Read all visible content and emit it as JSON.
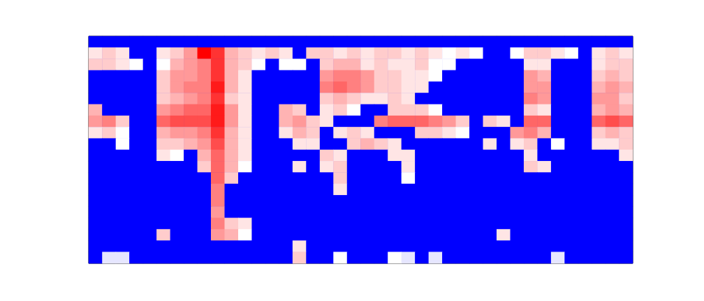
{
  "chart_data": {
    "type": "heatmap",
    "tick_labels": false,
    "grid": false,
    "color": [
      "#0000ff",
      "#ffffff",
      "#ff0000"
    ],
    "color_range": [
      0,
      1
    ],
    "cells": [
      [
        0,
        0,
        0,
        0,
        0,
        0,
        0,
        0,
        0,
        0,
        0,
        0,
        0,
        0,
        0,
        0,
        0,
        0,
        0,
        0,
        0,
        0,
        0,
        0,
        0,
        0,
        0,
        0,
        0,
        0,
        0,
        0,
        0,
        0,
        0,
        0,
        0,
        0,
        0,
        0
      ],
      [
        0.55,
        0.6,
        0.55,
        0,
        0,
        0.55,
        0.6,
        0.7,
        1.0,
        0.9,
        0.65,
        0.6,
        0.55,
        0.6,
        0.55,
        0,
        0.6,
        0.6,
        0.55,
        0.6,
        0.55,
        0.6,
        0.6,
        0.55,
        0.6,
        0.55,
        0.5,
        0.55,
        0.5,
        0,
        0,
        0.5,
        0.6,
        0.6,
        0.55,
        0.5,
        0,
        0.55,
        0.6,
        0.55
      ],
      [
        0.6,
        0.6,
        0.55,
        0.5,
        0,
        0.5,
        0.65,
        0.7,
        0.75,
        0.9,
        0.65,
        0.6,
        0.5,
        0,
        0.5,
        0.5,
        0,
        0.6,
        0.65,
        0.65,
        0.55,
        0.6,
        0.55,
        0.55,
        0.6,
        0.5,
        0.5,
        0,
        0,
        0,
        0,
        0,
        0.55,
        0.55,
        0,
        0,
        0,
        0.55,
        0.6,
        0.6
      ],
      [
        0,
        0,
        0,
        0,
        0,
        0.6,
        0.7,
        0.7,
        0.75,
        0.9,
        0.65,
        0.55,
        0,
        0,
        0,
        0,
        0,
        0.7,
        0.75,
        0.75,
        0.7,
        0.6,
        0.6,
        0.55,
        0.55,
        0.5,
        0,
        0,
        0,
        0,
        0,
        0,
        0.7,
        0.65,
        0,
        0,
        0,
        0.6,
        0.65,
        0.6
      ],
      [
        0,
        0,
        0,
        0,
        0,
        0.6,
        0.7,
        0.75,
        0.75,
        0.95,
        0.65,
        0.55,
        0,
        0,
        0,
        0,
        0,
        0.75,
        0.8,
        0.75,
        0.7,
        0.6,
        0.6,
        0.55,
        0.55,
        0,
        0,
        0,
        0,
        0,
        0,
        0,
        0.7,
        0.7,
        0,
        0,
        0,
        0.65,
        0.7,
        0.65
      ],
      [
        0,
        0,
        0,
        0,
        0,
        0.6,
        0.65,
        0.7,
        0.75,
        0.9,
        0.6,
        0.55,
        0,
        0,
        0,
        0,
        0,
        0.6,
        0.65,
        0.6,
        0.55,
        0.55,
        0.6,
        0.55,
        0,
        0,
        0,
        0,
        0,
        0,
        0,
        0,
        0.75,
        0.7,
        0,
        0,
        0,
        0.7,
        0.7,
        0.6
      ],
      [
        0.65,
        0,
        0,
        0,
        0,
        0.7,
        0.75,
        0.8,
        0.8,
        0.95,
        0.7,
        0.55,
        0,
        0,
        0.65,
        0.6,
        0,
        0.55,
        0.6,
        0.5,
        0,
        0,
        0.6,
        0.6,
        0.6,
        0.5,
        0,
        0,
        0,
        0,
        0,
        0,
        0.6,
        0.55,
        0,
        0,
        0,
        0.65,
        0.7,
        0.65
      ],
      [
        0.7,
        0.75,
        0.6,
        0,
        0,
        0.8,
        0.85,
        0.85,
        0.85,
        0.95,
        0.7,
        0.55,
        0,
        0,
        0.65,
        0.7,
        0.6,
        0.55,
        0,
        0,
        0,
        0.75,
        0.8,
        0.8,
        0.8,
        0.75,
        0.7,
        0.6,
        0,
        0.6,
        0.55,
        0,
        0.8,
        0.8,
        0,
        0,
        0,
        0.8,
        0.85,
        0.8
      ],
      [
        0.55,
        0.6,
        0.5,
        0,
        0,
        0.65,
        0.7,
        0.7,
        0.75,
        0.9,
        0.65,
        0.55,
        0,
        0,
        0.55,
        0.65,
        0.6,
        0,
        0.55,
        0.6,
        0.55,
        0,
        0,
        0,
        0.6,
        0.6,
        0.55,
        0.5,
        0,
        0,
        0,
        0.7,
        0.75,
        0.65,
        0,
        0,
        0,
        0.6,
        0.65,
        0.6
      ],
      [
        0,
        0,
        0.5,
        0,
        0,
        0.6,
        0.6,
        0.65,
        0.7,
        0.85,
        0.65,
        0.55,
        0,
        0,
        0,
        0.55,
        0.55,
        0,
        0,
        0.6,
        0.65,
        0.6,
        0.55,
        0,
        0,
        0,
        0,
        0,
        0,
        0.55,
        0,
        0.55,
        0.6,
        0,
        0.5,
        0,
        0,
        0.55,
        0.55,
        0.6
      ],
      [
        0,
        0,
        0,
        0,
        0,
        0.55,
        0.5,
        0,
        0.65,
        0.8,
        0.65,
        0.55,
        0,
        0,
        0,
        0,
        0,
        0.6,
        0.55,
        0,
        0,
        0,
        0.55,
        0.55,
        0,
        0,
        0,
        0,
        0,
        0,
        0,
        0,
        0.55,
        0,
        0,
        0,
        0,
        0,
        0,
        0.55
      ],
      [
        0,
        0,
        0,
        0,
        0,
        0,
        0,
        0,
        0.6,
        0.8,
        0.65,
        0.5,
        0,
        0,
        0,
        0.55,
        0,
        0.55,
        0.6,
        0,
        0,
        0,
        0,
        0.55,
        0,
        0,
        0,
        0,
        0,
        0,
        0,
        0,
        0.6,
        0.55,
        0,
        0,
        0,
        0,
        0,
        0
      ],
      [
        0,
        0,
        0,
        0,
        0,
        0,
        0,
        0,
        0,
        0.8,
        0.6,
        0,
        0,
        0,
        0,
        0,
        0,
        0,
        0.6,
        0,
        0,
        0,
        0,
        0.5,
        0,
        0,
        0,
        0,
        0,
        0,
        0,
        0,
        0,
        0,
        0,
        0,
        0,
        0,
        0,
        0
      ],
      [
        0,
        0,
        0,
        0,
        0,
        0,
        0,
        0,
        0,
        0.75,
        0,
        0,
        0,
        0,
        0,
        0,
        0,
        0,
        0.55,
        0,
        0,
        0,
        0,
        0,
        0,
        0,
        0,
        0,
        0,
        0,
        0,
        0,
        0,
        0,
        0,
        0,
        0,
        0,
        0,
        0
      ],
      [
        0,
        0,
        0,
        0,
        0,
        0,
        0,
        0,
        0,
        0.75,
        0,
        0,
        0,
        0,
        0,
        0,
        0,
        0,
        0,
        0,
        0,
        0,
        0,
        0,
        0,
        0,
        0,
        0,
        0,
        0,
        0,
        0,
        0,
        0,
        0,
        0,
        0,
        0,
        0,
        0
      ],
      [
        0,
        0,
        0,
        0,
        0,
        0,
        0,
        0,
        0,
        0.7,
        0,
        0,
        0,
        0,
        0,
        0,
        0,
        0,
        0,
        0,
        0,
        0,
        0,
        0,
        0,
        0,
        0,
        0,
        0,
        0,
        0,
        0,
        0,
        0,
        0,
        0,
        0,
        0,
        0,
        0
      ],
      [
        0,
        0,
        0,
        0,
        0,
        0,
        0,
        0,
        0,
        0.75,
        0.6,
        0.55,
        0,
        0,
        0,
        0,
        0,
        0,
        0,
        0,
        0,
        0,
        0,
        0,
        0,
        0,
        0,
        0,
        0,
        0,
        0,
        0,
        0,
        0,
        0,
        0,
        0,
        0,
        0,
        0
      ],
      [
        0,
        0,
        0,
        0,
        0,
        0.6,
        0,
        0,
        0,
        0.7,
        0.65,
        0.5,
        0,
        0,
        0,
        0,
        0,
        0,
        0,
        0,
        0,
        0,
        0,
        0,
        0,
        0,
        0,
        0,
        0,
        0,
        0.55,
        0,
        0,
        0,
        0,
        0,
        0,
        0,
        0,
        0
      ],
      [
        0,
        0,
        0,
        0,
        0,
        0,
        0,
        0,
        0,
        0,
        0,
        0,
        0,
        0,
        0,
        0.55,
        0,
        0,
        0,
        0,
        0,
        0,
        0,
        0,
        0,
        0,
        0,
        0,
        0,
        0,
        0,
        0,
        0,
        0,
        0,
        0,
        0,
        0,
        0,
        0
      ],
      [
        0,
        0.45,
        0.45,
        0,
        0,
        0,
        0,
        0,
        0,
        0,
        0,
        0,
        0,
        0,
        0,
        0.6,
        0,
        0,
        0.5,
        0,
        0,
        0,
        0.5,
        0.45,
        0,
        0.45,
        0,
        0,
        0,
        0,
        0,
        0,
        0,
        0,
        0.45,
        0,
        0,
        0,
        0,
        0
      ]
    ]
  }
}
